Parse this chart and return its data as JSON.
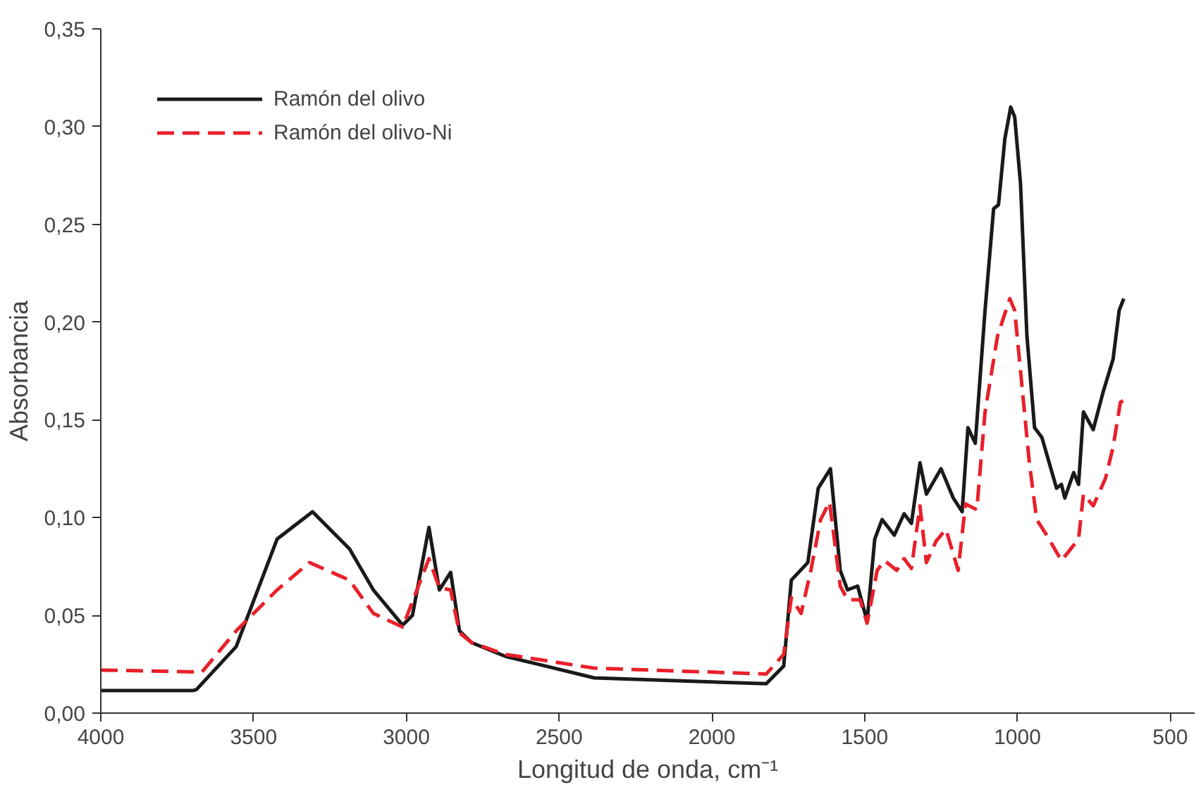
{
  "chart_data": {
    "type": "line",
    "xlabel": "Longitud de onda, cm⁻¹",
    "ylabel": "Absorbancia",
    "xlim": [
      4000,
      420
    ],
    "ylim": [
      0,
      0.35
    ],
    "xticks": [
      4000,
      3500,
      3000,
      2500,
      2000,
      1500,
      1000,
      500
    ],
    "yticks": [
      {
        "value": 0,
        "label": "0,00"
      },
      {
        "value": 0.05,
        "label": "0,05"
      },
      {
        "value": 0.1,
        "label": "0,10"
      },
      {
        "value": 0.15,
        "label": "0,15"
      },
      {
        "value": 0.2,
        "label": "0,20"
      },
      {
        "value": 0.25,
        "label": "0,25"
      },
      {
        "value": 0.3,
        "label": "0,30"
      },
      {
        "value": 0.35,
        "label": "0,35"
      }
    ],
    "grid": false,
    "legend": "top left",
    "marker": "none",
    "series": [
      {
        "name": "Ramón del olivo",
        "color": "#1a1a1a",
        "line_style": "solid",
        "x": [
          4000,
          3700,
          3687,
          3557,
          3423,
          3307,
          3186,
          3108,
          3012,
          2980,
          2926,
          2892,
          2855,
          2826,
          2786,
          2675,
          2385,
          1822,
          1765,
          1740,
          1686,
          1652,
          1612,
          1580,
          1556,
          1523,
          1492,
          1467,
          1443,
          1403,
          1371,
          1347,
          1319,
          1298,
          1250,
          1210,
          1181,
          1162,
          1138,
          1106,
          1078,
          1062,
          1041,
          1022,
          1009,
          990,
          969,
          944,
          920,
          896,
          872,
          856,
          845,
          816,
          800,
          784,
          752,
          720,
          687,
          667,
          652
        ],
        "values": [
          0.0115,
          0.0115,
          0.012,
          0.034,
          0.089,
          0.103,
          0.084,
          0.063,
          0.045,
          0.05,
          0.095,
          0.063,
          0.072,
          0.042,
          0.036,
          0.029,
          0.018,
          0.015,
          0.024,
          0.068,
          0.077,
          0.115,
          0.125,
          0.073,
          0.063,
          0.065,
          0.047,
          0.089,
          0.099,
          0.091,
          0.102,
          0.097,
          0.128,
          0.112,
          0.125,
          0.11,
          0.103,
          0.146,
          0.138,
          0.206,
          0.258,
          0.26,
          0.294,
          0.31,
          0.305,
          0.271,
          0.193,
          0.146,
          0.141,
          0.128,
          0.115,
          0.117,
          0.11,
          0.123,
          0.117,
          0.154,
          0.145,
          0.164,
          0.181,
          0.206,
          0.212
        ]
      },
      {
        "name": "Ramón del olivo-Ni",
        "color": "#e8202a",
        "line_style": "dashed",
        "x": [
          4000,
          3669,
          3557,
          3423,
          3317,
          3186,
          3108,
          3012,
          2926,
          2892,
          2855,
          2826,
          2786,
          2675,
          2385,
          1822,
          1765,
          1740,
          1708,
          1676,
          1644,
          1615,
          1580,
          1556,
          1515,
          1492,
          1459,
          1435,
          1395,
          1371,
          1347,
          1319,
          1298,
          1266,
          1234,
          1194,
          1170,
          1133,
          1106,
          1065,
          1025,
          1009,
          985,
          961,
          937,
          904,
          856,
          800,
          784,
          752,
          712,
          687,
          663,
          652
        ],
        "values": [
          0.022,
          0.021,
          0.042,
          0.063,
          0.077,
          0.068,
          0.051,
          0.044,
          0.079,
          0.064,
          0.063,
          0.041,
          0.036,
          0.03,
          0.023,
          0.02,
          0.03,
          0.059,
          0.051,
          0.073,
          0.099,
          0.108,
          0.065,
          0.058,
          0.058,
          0.046,
          0.073,
          0.078,
          0.073,
          0.079,
          0.074,
          0.106,
          0.077,
          0.088,
          0.094,
          0.073,
          0.107,
          0.104,
          0.154,
          0.193,
          0.212,
          0.206,
          0.167,
          0.128,
          0.099,
          0.091,
          0.078,
          0.089,
          0.112,
          0.106,
          0.12,
          0.136,
          0.159,
          0.16
        ]
      }
    ]
  }
}
